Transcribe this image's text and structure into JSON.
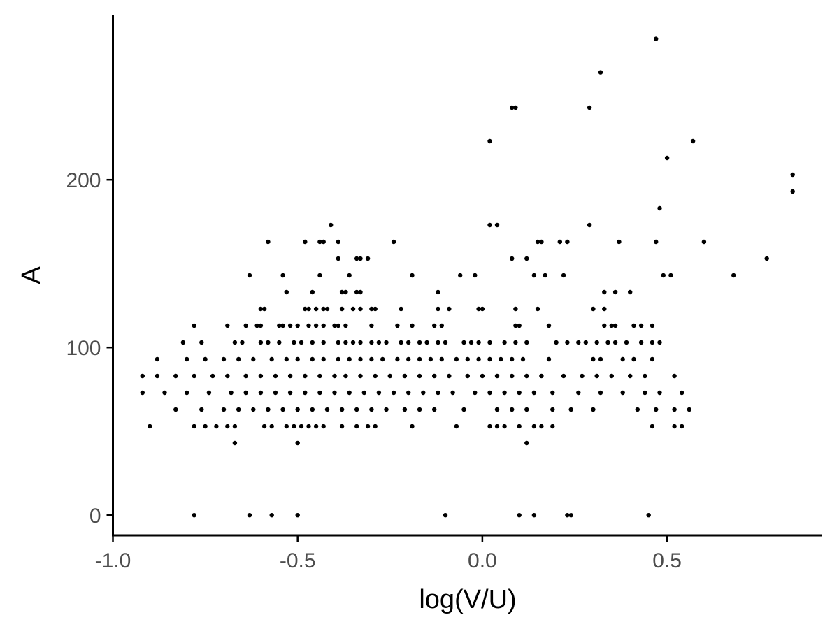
{
  "chart_data": {
    "type": "scatter",
    "title": "",
    "xlabel": "log(V/U)",
    "ylabel": "A",
    "xlim": [
      -1.0,
      0.92
    ],
    "ylim": [
      -12,
      298
    ],
    "x_ticks": [
      -1.0,
      -0.5,
      0.0,
      0.5
    ],
    "x_tick_labels": [
      "-1.0",
      "-0.5",
      "0.0",
      "0.5"
    ],
    "y_ticks": [
      0,
      100,
      200
    ],
    "y_tick_labels": [
      "0",
      "100",
      "200"
    ],
    "grid": false,
    "legend": "none",
    "points": [
      [
        0.47,
        284
      ],
      [
        0.32,
        264
      ],
      [
        0.08,
        243
      ],
      [
        0.09,
        243
      ],
      [
        0.29,
        243
      ],
      [
        0.02,
        223
      ],
      [
        0.57,
        223
      ],
      [
        0.5,
        213
      ],
      [
        0.84,
        203
      ],
      [
        0.84,
        193
      ],
      [
        0.48,
        183
      ],
      [
        -0.41,
        173
      ],
      [
        0.02,
        173
      ],
      [
        0.04,
        173
      ],
      [
        0.29,
        173
      ],
      [
        -0.58,
        163
      ],
      [
        -0.48,
        163
      ],
      [
        -0.44,
        163
      ],
      [
        -0.43,
        163
      ],
      [
        -0.39,
        163
      ],
      [
        -0.24,
        163
      ],
      [
        0.15,
        163
      ],
      [
        0.16,
        163
      ],
      [
        0.21,
        163
      ],
      [
        0.23,
        163
      ],
      [
        0.37,
        163
      ],
      [
        0.47,
        163
      ],
      [
        0.6,
        163
      ],
      [
        -0.39,
        153
      ],
      [
        -0.34,
        153
      ],
      [
        -0.33,
        153
      ],
      [
        -0.31,
        153
      ],
      [
        0.08,
        153
      ],
      [
        0.12,
        153
      ],
      [
        0.77,
        153
      ],
      [
        -0.63,
        143
      ],
      [
        -0.54,
        143
      ],
      [
        -0.44,
        143
      ],
      [
        -0.36,
        143
      ],
      [
        -0.19,
        143
      ],
      [
        -0.06,
        143
      ],
      [
        -0.02,
        143
      ],
      [
        0.14,
        143
      ],
      [
        0.17,
        143
      ],
      [
        0.22,
        143
      ],
      [
        0.49,
        143
      ],
      [
        0.51,
        143
      ],
      [
        0.68,
        143
      ],
      [
        -0.53,
        133
      ],
      [
        -0.46,
        133
      ],
      [
        -0.38,
        133
      ],
      [
        -0.37,
        133
      ],
      [
        -0.34,
        133
      ],
      [
        -0.33,
        133
      ],
      [
        -0.12,
        133
      ],
      [
        0.33,
        133
      ],
      [
        0.36,
        133
      ],
      [
        0.4,
        133
      ],
      [
        -0.6,
        123
      ],
      [
        -0.59,
        123
      ],
      [
        -0.48,
        123
      ],
      [
        -0.47,
        123
      ],
      [
        -0.45,
        123
      ],
      [
        -0.43,
        123
      ],
      [
        -0.42,
        123
      ],
      [
        -0.38,
        123
      ],
      [
        -0.35,
        123
      ],
      [
        -0.33,
        123
      ],
      [
        -0.3,
        123
      ],
      [
        -0.29,
        123
      ],
      [
        -0.22,
        123
      ],
      [
        -0.12,
        123
      ],
      [
        -0.09,
        123
      ],
      [
        -0.01,
        123
      ],
      [
        0.0,
        123
      ],
      [
        0.09,
        123
      ],
      [
        0.15,
        123
      ],
      [
        0.3,
        123
      ],
      [
        0.33,
        123
      ],
      [
        -0.78,
        113
      ],
      [
        -0.69,
        113
      ],
      [
        -0.64,
        113
      ],
      [
        -0.61,
        113
      ],
      [
        -0.6,
        113
      ],
      [
        -0.55,
        113
      ],
      [
        -0.54,
        113
      ],
      [
        -0.52,
        113
      ],
      [
        -0.5,
        113
      ],
      [
        -0.47,
        113
      ],
      [
        -0.45,
        113
      ],
      [
        -0.43,
        113
      ],
      [
        -0.4,
        113
      ],
      [
        -0.39,
        113
      ],
      [
        -0.37,
        113
      ],
      [
        -0.3,
        113
      ],
      [
        -0.23,
        113
      ],
      [
        -0.19,
        113
      ],
      [
        -0.13,
        113
      ],
      [
        -0.11,
        113
      ],
      [
        0.09,
        113
      ],
      [
        0.1,
        113
      ],
      [
        0.18,
        113
      ],
      [
        0.33,
        113
      ],
      [
        0.35,
        113
      ],
      [
        0.36,
        113
      ],
      [
        0.41,
        113
      ],
      [
        0.43,
        113
      ],
      [
        0.46,
        113
      ],
      [
        -0.81,
        103
      ],
      [
        -0.76,
        103
      ],
      [
        -0.67,
        103
      ],
      [
        -0.65,
        103
      ],
      [
        -0.6,
        103
      ],
      [
        -0.58,
        103
      ],
      [
        -0.55,
        103
      ],
      [
        -0.51,
        103
      ],
      [
        -0.49,
        103
      ],
      [
        -0.46,
        103
      ],
      [
        -0.43,
        103
      ],
      [
        -0.39,
        103
      ],
      [
        -0.37,
        103
      ],
      [
        -0.35,
        103
      ],
      [
        -0.33,
        103
      ],
      [
        -0.3,
        103
      ],
      [
        -0.28,
        103
      ],
      [
        -0.26,
        103
      ],
      [
        -0.22,
        103
      ],
      [
        -0.2,
        103
      ],
      [
        -0.17,
        103
      ],
      [
        -0.15,
        103
      ],
      [
        -0.12,
        103
      ],
      [
        -0.1,
        103
      ],
      [
        -0.05,
        103
      ],
      [
        -0.03,
        103
      ],
      [
        -0.01,
        103
      ],
      [
        0.02,
        103
      ],
      [
        0.06,
        103
      ],
      [
        0.09,
        103
      ],
      [
        0.12,
        103
      ],
      [
        0.2,
        103
      ],
      [
        0.23,
        103
      ],
      [
        0.26,
        103
      ],
      [
        0.28,
        103
      ],
      [
        0.31,
        103
      ],
      [
        0.34,
        103
      ],
      [
        0.36,
        103
      ],
      [
        0.39,
        103
      ],
      [
        0.43,
        103
      ],
      [
        0.46,
        103
      ],
      [
        0.48,
        103
      ],
      [
        -0.88,
        93
      ],
      [
        -0.8,
        93
      ],
      [
        -0.75,
        93
      ],
      [
        -0.7,
        93
      ],
      [
        -0.66,
        93
      ],
      [
        -0.62,
        93
      ],
      [
        -0.57,
        93
      ],
      [
        -0.53,
        93
      ],
      [
        -0.5,
        93
      ],
      [
        -0.46,
        93
      ],
      [
        -0.43,
        93
      ],
      [
        -0.39,
        93
      ],
      [
        -0.36,
        93
      ],
      [
        -0.33,
        93
      ],
      [
        -0.3,
        93
      ],
      [
        -0.27,
        93
      ],
      [
        -0.23,
        93
      ],
      [
        -0.2,
        93
      ],
      [
        -0.17,
        93
      ],
      [
        -0.14,
        93
      ],
      [
        -0.11,
        93
      ],
      [
        -0.07,
        93
      ],
      [
        -0.04,
        93
      ],
      [
        -0.01,
        93
      ],
      [
        0.02,
        93
      ],
      [
        0.05,
        93
      ],
      [
        0.08,
        93
      ],
      [
        0.11,
        93
      ],
      [
        0.18,
        93
      ],
      [
        0.3,
        93
      ],
      [
        0.32,
        93
      ],
      [
        0.38,
        93
      ],
      [
        0.41,
        93
      ],
      [
        0.46,
        93
      ],
      [
        -0.92,
        83
      ],
      [
        -0.88,
        83
      ],
      [
        -0.83,
        83
      ],
      [
        -0.78,
        83
      ],
      [
        -0.73,
        83
      ],
      [
        -0.69,
        83
      ],
      [
        -0.64,
        83
      ],
      [
        -0.6,
        83
      ],
      [
        -0.56,
        83
      ],
      [
        -0.52,
        83
      ],
      [
        -0.48,
        83
      ],
      [
        -0.44,
        83
      ],
      [
        -0.4,
        83
      ],
      [
        -0.37,
        83
      ],
      [
        -0.33,
        83
      ],
      [
        -0.29,
        83
      ],
      [
        -0.25,
        83
      ],
      [
        -0.21,
        83
      ],
      [
        -0.17,
        83
      ],
      [
        -0.13,
        83
      ],
      [
        -0.09,
        83
      ],
      [
        -0.04,
        83
      ],
      [
        0.0,
        83
      ],
      [
        0.04,
        83
      ],
      [
        0.08,
        83
      ],
      [
        0.12,
        83
      ],
      [
        0.16,
        83
      ],
      [
        0.22,
        83
      ],
      [
        0.27,
        83
      ],
      [
        0.31,
        83
      ],
      [
        0.35,
        83
      ],
      [
        0.4,
        83
      ],
      [
        0.44,
        83
      ],
      [
        0.52,
        83
      ],
      [
        -0.92,
        73
      ],
      [
        -0.86,
        73
      ],
      [
        -0.8,
        73
      ],
      [
        -0.74,
        73
      ],
      [
        -0.68,
        73
      ],
      [
        -0.64,
        73
      ],
      [
        -0.6,
        73
      ],
      [
        -0.56,
        73
      ],
      [
        -0.52,
        73
      ],
      [
        -0.48,
        73
      ],
      [
        -0.44,
        73
      ],
      [
        -0.4,
        73
      ],
      [
        -0.36,
        73
      ],
      [
        -0.32,
        73
      ],
      [
        -0.28,
        73
      ],
      [
        -0.24,
        73
      ],
      [
        -0.2,
        73
      ],
      [
        -0.16,
        73
      ],
      [
        -0.12,
        73
      ],
      [
        -0.08,
        73
      ],
      [
        -0.02,
        73
      ],
      [
        0.02,
        73
      ],
      [
        0.06,
        73
      ],
      [
        0.1,
        73
      ],
      [
        0.14,
        73
      ],
      [
        0.19,
        73
      ],
      [
        0.26,
        73
      ],
      [
        0.32,
        73
      ],
      [
        0.38,
        73
      ],
      [
        0.44,
        73
      ],
      [
        0.48,
        73
      ],
      [
        0.54,
        73
      ],
      [
        -0.83,
        63
      ],
      [
        -0.76,
        63
      ],
      [
        -0.7,
        63
      ],
      [
        -0.66,
        63
      ],
      [
        -0.62,
        63
      ],
      [
        -0.58,
        63
      ],
      [
        -0.54,
        63
      ],
      [
        -0.5,
        63
      ],
      [
        -0.46,
        63
      ],
      [
        -0.42,
        63
      ],
      [
        -0.38,
        63
      ],
      [
        -0.34,
        63
      ],
      [
        -0.3,
        63
      ],
      [
        -0.26,
        63
      ],
      [
        -0.21,
        63
      ],
      [
        -0.17,
        63
      ],
      [
        -0.13,
        63
      ],
      [
        -0.05,
        63
      ],
      [
        0.04,
        63
      ],
      [
        0.08,
        63
      ],
      [
        0.12,
        63
      ],
      [
        0.19,
        63
      ],
      [
        0.24,
        63
      ],
      [
        0.3,
        63
      ],
      [
        0.42,
        63
      ],
      [
        0.47,
        63
      ],
      [
        0.52,
        63
      ],
      [
        0.56,
        63
      ],
      [
        -0.9,
        53
      ],
      [
        -0.78,
        53
      ],
      [
        -0.75,
        53
      ],
      [
        -0.72,
        53
      ],
      [
        -0.69,
        53
      ],
      [
        -0.67,
        53
      ],
      [
        -0.59,
        53
      ],
      [
        -0.57,
        53
      ],
      [
        -0.53,
        53
      ],
      [
        -0.51,
        53
      ],
      [
        -0.49,
        53
      ],
      [
        -0.47,
        53
      ],
      [
        -0.45,
        53
      ],
      [
        -0.43,
        53
      ],
      [
        -0.38,
        53
      ],
      [
        -0.34,
        53
      ],
      [
        -0.31,
        53
      ],
      [
        -0.29,
        53
      ],
      [
        -0.19,
        53
      ],
      [
        -0.07,
        53
      ],
      [
        0.02,
        53
      ],
      [
        0.04,
        53
      ],
      [
        0.06,
        53
      ],
      [
        0.1,
        53
      ],
      [
        0.14,
        53
      ],
      [
        0.16,
        53
      ],
      [
        0.19,
        53
      ],
      [
        0.46,
        53
      ],
      [
        0.52,
        53
      ],
      [
        0.54,
        53
      ],
      [
        -0.67,
        43
      ],
      [
        -0.5,
        43
      ],
      [
        0.12,
        43
      ],
      [
        -0.78,
        0
      ],
      [
        -0.63,
        0
      ],
      [
        -0.57,
        0
      ],
      [
        -0.5,
        0
      ],
      [
        -0.1,
        0
      ],
      [
        0.1,
        0
      ],
      [
        0.14,
        0
      ],
      [
        0.23,
        0
      ],
      [
        0.24,
        0
      ],
      [
        0.45,
        0
      ]
    ]
  }
}
